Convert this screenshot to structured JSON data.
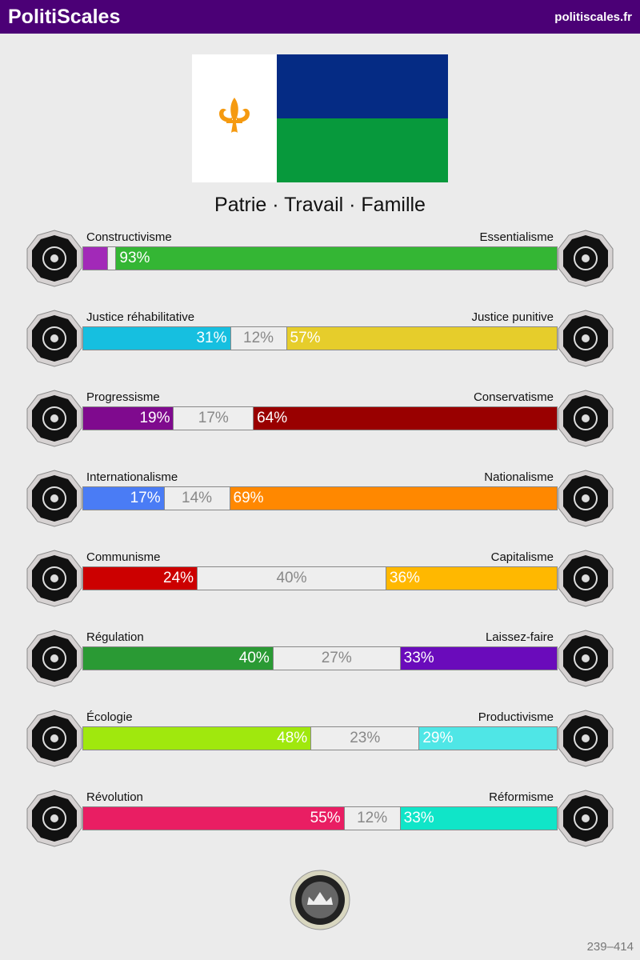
{
  "header": {
    "brand": "PolitiScales",
    "site": "politiscales.fr"
  },
  "flag": {
    "colors": {
      "white": "#ffffff",
      "blue": "#052b84",
      "green": "#07993c",
      "fleur": "#f59a10"
    },
    "emblem": "fleur-de-lis"
  },
  "motto": "Patrie · Travail · Famille",
  "axes": [
    {
      "left": "Constructivisme",
      "right": "Essentialisme",
      "left_pct": 5,
      "mid_pct": 2,
      "right_pct": 93,
      "left_text": "",
      "mid_text": "",
      "right_text": "93%",
      "left_color": "#a229b8",
      "right_color": "#34b634",
      "left_icon": "eye-icon",
      "right_icon": "flower-icon"
    },
    {
      "left": "Justice réhabilitative",
      "right": "Justice punitive",
      "left_pct": 31,
      "mid_pct": 12,
      "right_pct": 57,
      "left_text": "31%",
      "mid_text": "12%",
      "right_text": "57%",
      "left_color": "#16bfe0",
      "right_color": "#e6cd2b",
      "left_icon": "handshake-icon",
      "right_icon": "prison-bars-icon"
    },
    {
      "left": "Progressisme",
      "right": "Conservatisme",
      "left_pct": 19,
      "mid_pct": 17,
      "right_pct": 64,
      "left_text": "19%",
      "mid_text": "17%",
      "right_text": "64%",
      "left_color": "#7f0a8e",
      "right_color": "#990000",
      "left_icon": "rocket-icon",
      "right_icon": "quill-icon"
    },
    {
      "left": "Internationalisme",
      "right": "Nationalisme",
      "left_pct": 17,
      "mid_pct": 14,
      "right_pct": 69,
      "left_text": "17%",
      "mid_text": "14%",
      "right_text": "69%",
      "left_color": "#4a7cf5",
      "right_color": "#ff8800",
      "left_icon": "globe-icon",
      "right_icon": "flag-icon"
    },
    {
      "left": "Communisme",
      "right": "Capitalisme",
      "left_pct": 24,
      "mid_pct": 40,
      "right_pct": 36,
      "left_text": "24%",
      "mid_text": "40%",
      "right_text": "36%",
      "left_color": "#cc0000",
      "right_color": "#ffb800",
      "left_icon": "hammer-sickle-icon",
      "right_icon": "money-bag-icon"
    },
    {
      "left": "Régulation",
      "right": "Laissez-faire",
      "left_pct": 40,
      "mid_pct": 27,
      "right_pct": 33,
      "left_text": "40%",
      "mid_text": "27%",
      "right_text": "33%",
      "left_color": "#2a9a34",
      "right_color": "#6a0bbb",
      "left_icon": "ruler-icon",
      "right_icon": "butterfly-icon"
    },
    {
      "left": "Écologie",
      "right": "Productivisme",
      "left_pct": 48,
      "mid_pct": 23,
      "right_pct": 29,
      "left_text": "48%",
      "mid_text": "23%",
      "right_text": "29%",
      "left_color": "#a0e80d",
      "right_color": "#4fe6e6",
      "left_icon": "sprout-icon",
      "right_icon": "gear-icon"
    },
    {
      "left": "Révolution",
      "right": "Réformisme",
      "left_pct": 55,
      "mid_pct": 12,
      "right_pct": 33,
      "left_text": "55%",
      "mid_text": "12%",
      "right_text": "33%",
      "left_color": "#e91e63",
      "right_color": "#10e5c8",
      "left_icon": "fist-icon",
      "right_icon": "parliament-icon"
    }
  ],
  "badge": {
    "icon": "crown-seal-icon"
  },
  "code": "239–414"
}
